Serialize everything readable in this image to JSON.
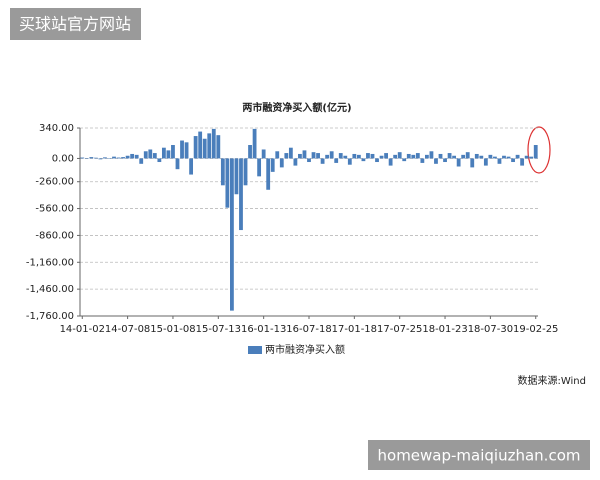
{
  "watermark_top": "买球站官方网站",
  "watermark_bottom": "homewap-maiqiuzhan.com",
  "chart_data": {
    "type": "bar",
    "title": "两市融资净买入额(亿元)",
    "source": "数据来源:Wind",
    "categories": [
      "14-01-02",
      null,
      null,
      null,
      null,
      null,
      null,
      null,
      null,
      null,
      "14-07-08",
      null,
      null,
      null,
      null,
      null,
      null,
      null,
      null,
      null,
      "15-01-08",
      null,
      null,
      null,
      null,
      null,
      null,
      null,
      null,
      null,
      "15-07-13",
      null,
      null,
      null,
      null,
      null,
      null,
      null,
      null,
      null,
      "16-01-13",
      null,
      null,
      null,
      null,
      null,
      null,
      null,
      null,
      null,
      "16-07-18",
      null,
      null,
      null,
      null,
      null,
      null,
      null,
      null,
      null,
      "17-01-18",
      null,
      null,
      null,
      null,
      null,
      null,
      null,
      null,
      null,
      "17-07-25",
      null,
      null,
      null,
      null,
      null,
      null,
      null,
      null,
      null,
      "18-01-23",
      null,
      null,
      null,
      null,
      null,
      null,
      null,
      null,
      null,
      "18-07-30",
      null,
      null,
      null,
      null,
      null,
      null,
      null,
      null,
      null,
      "19-02-25"
    ],
    "series": [
      {
        "name": "两市融资净买入额",
        "color": "#4a7ebb",
        "values": [
          10,
          -5,
          15,
          8,
          -10,
          12,
          5,
          20,
          10,
          15,
          30,
          50,
          40,
          -60,
          80,
          100,
          60,
          -40,
          120,
          90,
          150,
          -120,
          200,
          180,
          -180,
          250,
          300,
          220,
          280,
          330,
          260,
          -300,
          -550,
          -1700,
          -400,
          -800,
          -300,
          150,
          330,
          -200,
          100,
          -350,
          -150,
          80,
          -100,
          60,
          120,
          -80,
          50,
          90,
          -40,
          70,
          60,
          -60,
          40,
          80,
          -50,
          60,
          30,
          -70,
          50,
          40,
          -30,
          60,
          50,
          -40,
          30,
          60,
          -80,
          40,
          70,
          -30,
          50,
          40,
          60,
          -50,
          40,
          80,
          -60,
          50,
          -40,
          60,
          30,
          -90,
          40,
          70,
          -100,
          50,
          30,
          -80,
          40,
          20,
          -60,
          30,
          20,
          -40,
          40,
          -80,
          30,
          20,
          150
        ]
      }
    ],
    "ylim": [
      -1760,
      340
    ],
    "yticks": [
      {
        "value": 340,
        "label": "340.00"
      },
      {
        "value": 0,
        "label": "0.00"
      },
      {
        "value": -260,
        "label": "-260.00"
      },
      {
        "value": -560,
        "label": "-560.00"
      },
      {
        "value": -860,
        "label": "-860.00"
      },
      {
        "value": -1160,
        "label": "-1,160.00"
      },
      {
        "value": -1460,
        "label": "-1,460.00"
      },
      {
        "value": -1760,
        "label": "-1,760.00"
      }
    ],
    "grid": true
  }
}
